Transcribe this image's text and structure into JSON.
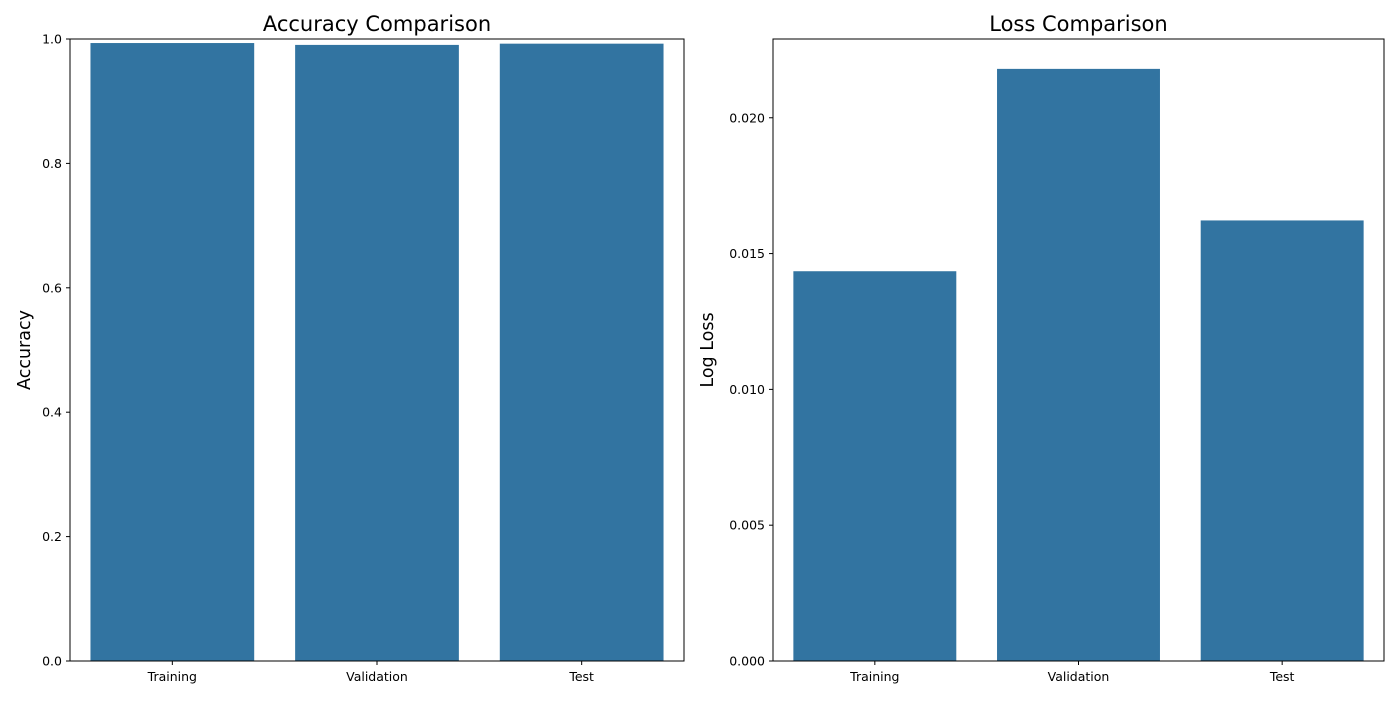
{
  "chart_data": [
    {
      "type": "bar",
      "title": "Accuracy Comparison",
      "xlabel": "",
      "ylabel": "Accuracy",
      "categories": [
        "Training",
        "Validation",
        "Test"
      ],
      "values": [
        0.9935,
        0.9905,
        0.9925
      ],
      "ylim": [
        0,
        1.0
      ],
      "yticks": [
        0.0,
        0.2,
        0.4,
        0.6,
        0.8,
        1.0
      ],
      "ytick_labels": [
        "0.0",
        "0.2",
        "0.4",
        "0.6",
        "0.8",
        "1.0"
      ],
      "grid": false,
      "color": "#3274a1"
    },
    {
      "type": "bar",
      "title": "Loss Comparison",
      "xlabel": "",
      "ylabel": "Log Loss",
      "categories": [
        "Training",
        "Validation",
        "Test"
      ],
      "values": [
        0.01435,
        0.0218,
        0.01622
      ],
      "ylim": [
        0,
        0.0229
      ],
      "yticks": [
        0.0,
        0.005,
        0.01,
        0.015,
        0.02
      ],
      "ytick_labels": [
        "0.000",
        "0.005",
        "0.010",
        "0.015",
        "0.020"
      ],
      "grid": false,
      "color": "#3274a1"
    }
  ]
}
